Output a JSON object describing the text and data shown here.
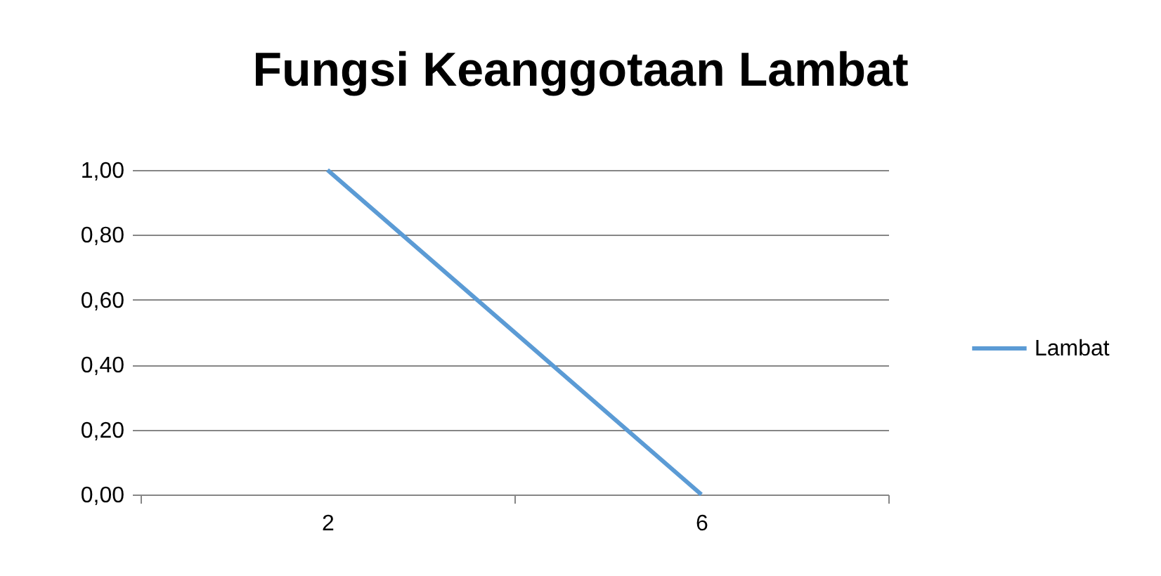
{
  "chart_data": {
    "type": "line",
    "title": "Fungsi Keanggotaan Lambat",
    "categories": [
      "2",
      "6"
    ],
    "series": [
      {
        "name": "Lambat",
        "color": "#5b9bd5",
        "values": [
          1.0,
          0.0
        ]
      }
    ],
    "ylim": [
      0,
      1
    ],
    "yticks": [
      {
        "value": 0,
        "label": "0,00"
      },
      {
        "value": 0.2,
        "label": "0,20"
      },
      {
        "value": 0.4,
        "label": "0,40"
      },
      {
        "value": 0.6,
        "label": "0,60"
      },
      {
        "value": 0.8,
        "label": "0,80"
      },
      {
        "value": 1,
        "label": "1,00"
      }
    ],
    "grid": "y",
    "legend": "right",
    "marker": "none"
  }
}
